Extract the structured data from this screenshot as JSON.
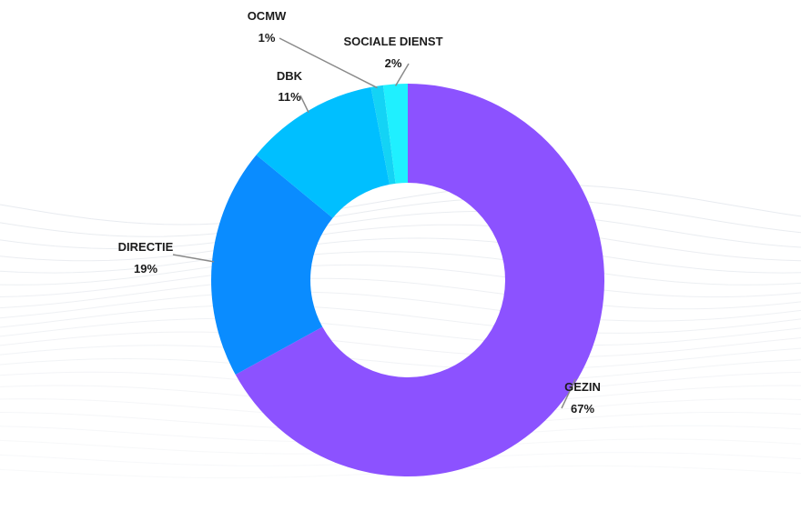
{
  "chart_data": {
    "type": "pie",
    "variant": "donut",
    "slices": [
      {
        "label": "GEZIN",
        "value": 67,
        "pct_label": "67%",
        "color": "#8c52ff"
      },
      {
        "label": "DIRECTIE",
        "value": 19,
        "pct_label": "19%",
        "color": "#0a8cff"
      },
      {
        "label": "DBK",
        "value": 11,
        "pct_label": "11%",
        "color": "#00bfff"
      },
      {
        "label": "OCMW",
        "value": 1,
        "pct_label": "1%",
        "color": "#14d3f5"
      },
      {
        "label": "SOCIALE DIENST",
        "value": 2,
        "pct_label": "2%",
        "color": "#1ff0ff"
      }
    ],
    "label_color": "#1b1b1b",
    "leader_color": "#8a8a8a",
    "background_wave_color": "#e6e9ee"
  }
}
